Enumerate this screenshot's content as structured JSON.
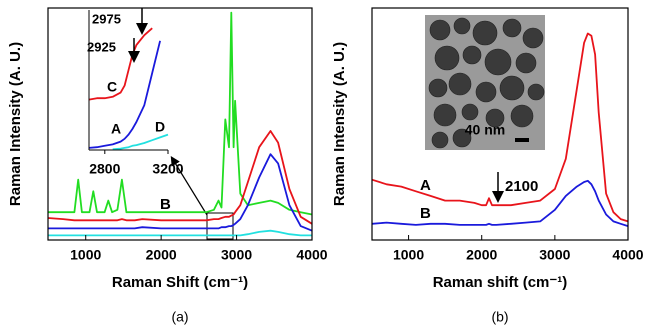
{
  "chart_data": [
    {
      "type": "line",
      "xlabel": "Raman Shift (cm⁻¹)",
      "ylabel": "Raman Intensity (A. U.)",
      "caption": "(a)",
      "xlim": [
        500,
        4000
      ],
      "xticks": [
        1000,
        2000,
        3000,
        4000
      ],
      "ylim": [
        0,
        100
      ],
      "x": [
        500,
        700,
        850,
        900,
        950,
        1050,
        1100,
        1150,
        1250,
        1300,
        1350,
        1420,
        1480,
        1540,
        1650,
        1750,
        2000,
        2300,
        2600,
        2700,
        2760,
        2800,
        2850,
        2900,
        2930,
        2960,
        2980,
        3050,
        3150,
        3300,
        3450,
        3550,
        3700,
        3850,
        4000
      ],
      "series": [
        {
          "name": "B",
          "color": "#22dd22",
          "values": [
            12,
            12,
            12,
            26,
            12,
            12,
            21,
            12,
            12,
            17,
            12,
            13,
            26,
            12,
            12,
            12,
            12,
            12,
            12,
            13,
            17,
            14,
            52,
            40,
            98,
            40,
            60,
            20,
            15,
            16,
            17,
            16,
            13,
            12,
            11
          ]
        },
        {
          "color": "#e8141b",
          "values": [
            9.5,
            9,
            8.5,
            8.5,
            8.5,
            8.5,
            8.5,
            8.5,
            8.5,
            8.5,
            8.5,
            8.5,
            9,
            8.5,
            8.5,
            9,
            8.5,
            8.5,
            8.5,
            9,
            9,
            9.5,
            10,
            10,
            10.5,
            11,
            12,
            15,
            25,
            40,
            47,
            42,
            22,
            10,
            7
          ]
        },
        {
          "color": "#1a1adc",
          "values": [
            5,
            5,
            5,
            5,
            5,
            5,
            5,
            5,
            5,
            5,
            5,
            5,
            5,
            5,
            5,
            5.5,
            5,
            5,
            5,
            5,
            5,
            5.5,
            5.5,
            6,
            6,
            6.5,
            7,
            9,
            15,
            27,
            37,
            33,
            15,
            6,
            4
          ]
        },
        {
          "color": "#22e0e0",
          "values": [
            2,
            2,
            2,
            2,
            2,
            2,
            2,
            2,
            2,
            2,
            2,
            2,
            2,
            2,
            2,
            2,
            2,
            2,
            2,
            2,
            2,
            2,
            2,
            2,
            2,
            2,
            2,
            2,
            2.5,
            3.5,
            4,
            3.5,
            2.5,
            2,
            2
          ]
        }
      ],
      "inset": {
        "type": "line",
        "xlim": [
          2700,
          3200
        ],
        "xticks": [
          2800,
          3200
        ],
        "ylim": [
          0,
          100
        ],
        "x": [
          2700,
          2750,
          2800,
          2850,
          2900,
          2925,
          2950,
          2975,
          3000,
          3050,
          3100,
          3150,
          3200
        ],
        "series": [
          {
            "name": "C",
            "color": "#e8141b",
            "values": [
              36,
              37,
              37,
              38,
              41,
              46,
              57,
              68,
              75,
              82,
              87,
              null,
              null
            ]
          },
          {
            "name": "A",
            "color": "#1a1adc",
            "values": [
              1.5,
              2,
              3,
              4,
              6,
              8,
              11,
              15,
              20,
              32,
              55,
              78,
              null
            ]
          },
          {
            "name": "D",
            "color": "#22e0e0",
            "values": [
              null,
              null,
              null,
              0.5,
              1,
              1.5,
              2,
              3,
              3.5,
              5,
              7,
              9,
              11
            ]
          }
        ],
        "annotations": [
          "2975",
          "2925"
        ]
      }
    },
    {
      "type": "line",
      "xlabel": "Raman shift (cm⁻¹)",
      "ylabel": "Raman Intensity (A. U.)",
      "caption": "(b)",
      "xlim": [
        500,
        4000
      ],
      "xticks": [
        1000,
        2000,
        3000,
        4000
      ],
      "ylim": [
        0,
        100
      ],
      "x": [
        500,
        700,
        900,
        1100,
        1300,
        1500,
        1700,
        1900,
        2000,
        2060,
        2100,
        2140,
        2200,
        2400,
        2600,
        2800,
        3000,
        3150,
        3300,
        3400,
        3450,
        3500,
        3550,
        3600,
        3700,
        3800,
        3900,
        4000
      ],
      "series": [
        {
          "name": "A",
          "color": "#e8141b",
          "values": [
            26,
            24,
            23,
            21,
            19,
            17,
            17,
            16,
            15,
            15,
            18,
            15,
            15,
            15,
            16,
            17,
            22,
            35,
            65,
            85,
            89,
            88,
            80,
            55,
            20,
            12,
            9,
            8
          ]
        },
        {
          "name": "B",
          "color": "#1a1adc",
          "values": [
            7,
            7.5,
            7,
            6.5,
            7,
            7,
            6.5,
            6.5,
            6.5,
            6.5,
            7,
            6.5,
            6.5,
            7,
            7.5,
            8,
            13,
            19,
            23,
            25,
            25.5,
            24,
            21,
            17,
            11,
            8,
            7,
            6
          ]
        }
      ],
      "annotations": [
        "2100"
      ],
      "scale_bar": "40 nm"
    }
  ]
}
